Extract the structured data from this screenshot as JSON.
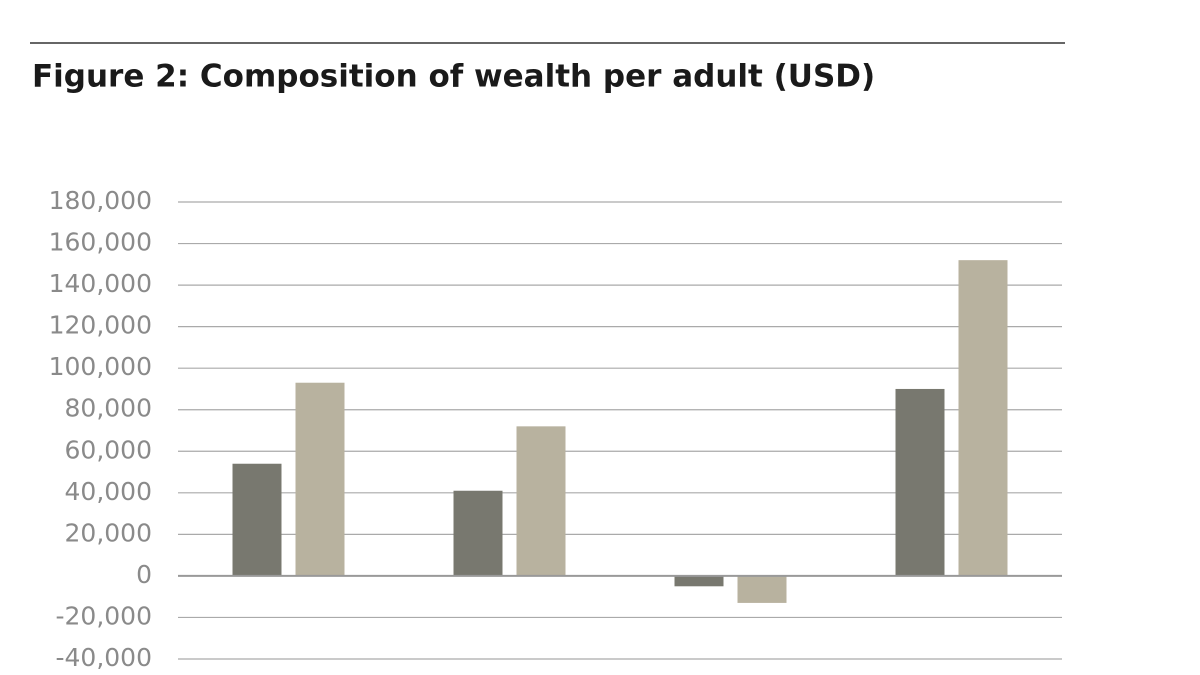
{
  "chart_data": {
    "type": "bar",
    "title": "Figure 2: Composition of wealth per adult (USD)",
    "categories": [
      null,
      null,
      null,
      null
    ],
    "series": [
      {
        "color": "#78786f",
        "values": [
          54000,
          41000,
          -5000,
          90000
        ]
      },
      {
        "color": "#b8b29f",
        "values": [
          93000,
          72000,
          -13000,
          152000
        ]
      }
    ],
    "ylim": [
      -40000,
      180000
    ],
    "yticks": [
      {
        "value": -40000,
        "label": "-40,000"
      },
      {
        "value": -20000,
        "label": "-20,000"
      },
      0,
      {
        "value": 20000,
        "label": "20,000"
      },
      {
        "value": 40000,
        "label": "40,000"
      },
      {
        "value": 60000,
        "label": "60,000"
      },
      {
        "value": 80000,
        "label": "80,000"
      },
      {
        "value": 100000,
        "label": "100,000"
      },
      {
        "value": 120000,
        "label": "120,000"
      },
      {
        "value": 140000,
        "label": "140,000"
      },
      {
        "value": 160000,
        "label": "160,000"
      },
      {
        "value": 180000,
        "label": "180,000"
      }
    ],
    "grid": true
  }
}
